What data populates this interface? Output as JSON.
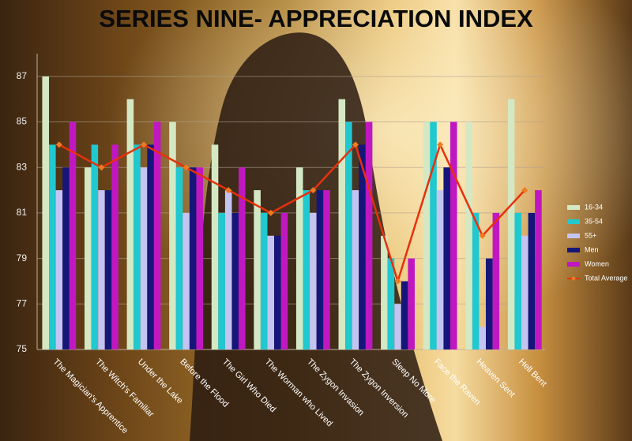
{
  "chart_data": {
    "type": "bar",
    "title": "SERIES NINE- APPRECIATION INDEX",
    "categories": [
      "The Magician's Apprentice",
      "The Witch's Familiar",
      "Under the Lake",
      "Before the Flood",
      "The Girl Who Died",
      "The Worman who Lived",
      "The Zygon Invasion",
      "The Zygon Inversion",
      "Sleep No More",
      "Face the Raven",
      "Heaven Sent",
      "Hell Bent"
    ],
    "series": [
      {
        "name": "16-34",
        "color": "#d4e8c4",
        "values": [
          87,
          83,
          86,
          85,
          84,
          82,
          83,
          86,
          80,
          85,
          85,
          86
        ]
      },
      {
        "name": "35-54",
        "color": "#20c8d0",
        "values": [
          84,
          84,
          84,
          83,
          81,
          81,
          82,
          85,
          79,
          85,
          81,
          81
        ]
      },
      {
        "name": "55+",
        "color": "#c4c4f0",
        "values": [
          82,
          82,
          83,
          81,
          82,
          80,
          81,
          82,
          77,
          82,
          76,
          80
        ]
      },
      {
        "name": "Men",
        "color": "#16167a",
        "values": [
          83,
          82,
          84,
          83,
          81,
          80,
          82,
          84,
          78,
          83,
          79,
          81
        ]
      },
      {
        "name": "Women",
        "color": "#c018c0",
        "values": [
          85,
          84,
          85,
          83,
          83,
          81,
          82,
          85,
          79,
          85,
          81,
          82
        ]
      },
      {
        "name": "Total Average",
        "color": "#e8300c",
        "type": "line",
        "values": [
          84,
          83,
          84,
          83,
          82,
          81,
          82,
          84,
          78,
          84,
          80,
          82
        ]
      }
    ],
    "ylim": [
      75,
      88
    ],
    "yticks": [
      75,
      77,
      79,
      81,
      83,
      85,
      87
    ],
    "grid": true,
    "legend": "right"
  }
}
